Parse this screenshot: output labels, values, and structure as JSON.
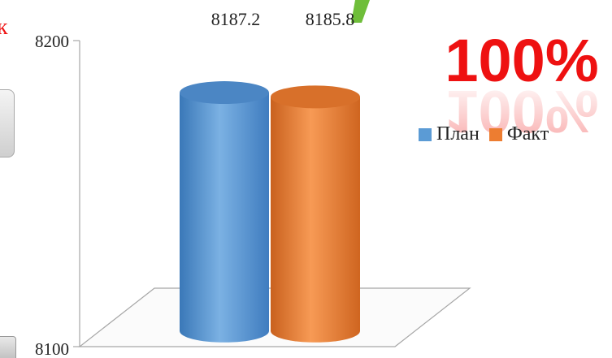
{
  "chart_data": {
    "type": "bar",
    "categories": [
      ""
    ],
    "series": [
      {
        "name": "План",
        "values": [
          8187.2
        ],
        "color": "#5b9bd5"
      },
      {
        "name": "Факт",
        "values": [
          8185.8
        ],
        "color": "#ed7d31"
      }
    ],
    "data_labels": [
      "8187.2",
      "8185.8"
    ],
    "ylim": [
      8100,
      8200
    ],
    "y_tick_labels": [
      "8200",
      "8100"
    ],
    "legend_position": "right",
    "grid": false,
    "style": "3d-cylinder"
  },
  "overlay": {
    "percent_text": "100%",
    "percent_color": "#ee1111",
    "left_edge_fragment": "к",
    "left_edge_color": "#ee1111",
    "accent_mark_color": "#6fbe3a"
  },
  "legend": {
    "items": [
      {
        "label": "План",
        "color": "#5b9bd5"
      },
      {
        "label": "Факт",
        "color": "#ed7d31"
      }
    ]
  }
}
